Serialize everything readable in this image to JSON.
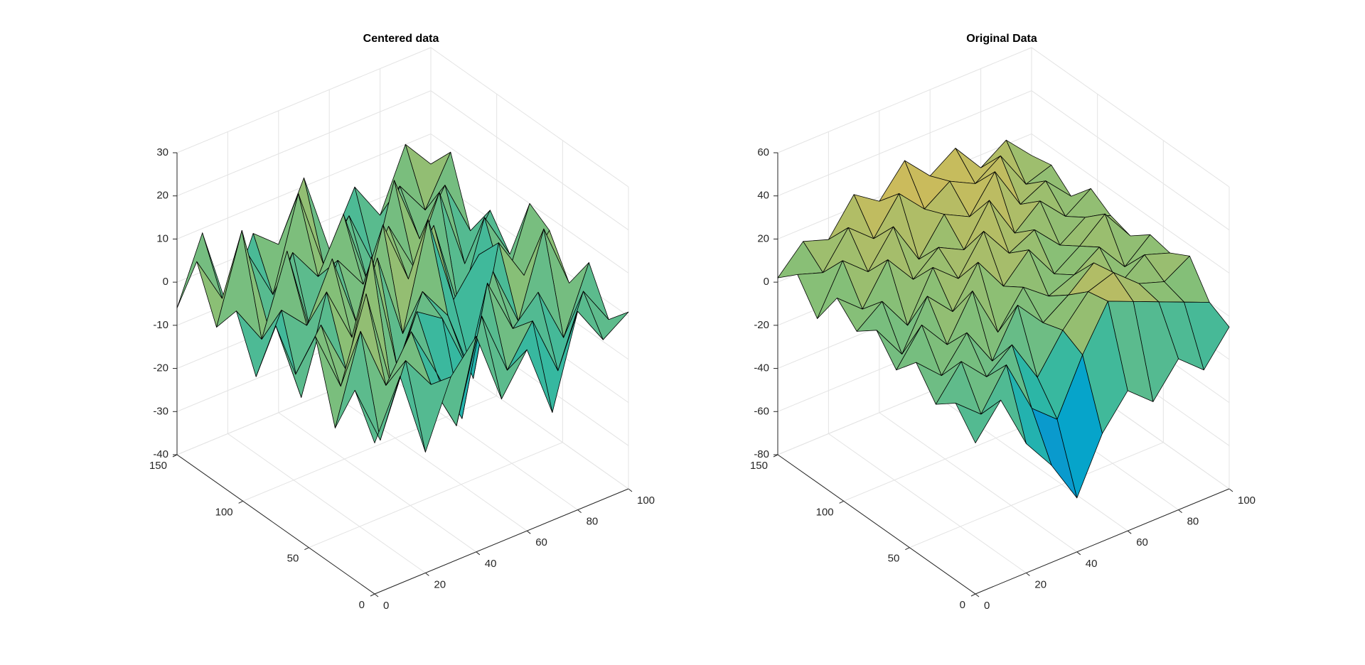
{
  "chart_data": [
    {
      "type": "surface",
      "title": "Centered data",
      "x": [
        0,
        10,
        20,
        30,
        40,
        50,
        60,
        70,
        80,
        90,
        100
      ],
      "y": [
        0,
        15,
        30,
        45,
        60,
        75,
        90,
        105,
        120,
        135,
        150
      ],
      "z": [
        [
          -5,
          8,
          -12,
          3,
          10,
          -7,
          2,
          -15,
          6,
          -3,
          1
        ],
        [
          4,
          -10,
          6,
          -2,
          -14,
          9,
          -6,
          3,
          -11,
          5,
          -4
        ],
        [
          -8,
          12,
          -3,
          7,
          -5,
          -18,
          11,
          -2,
          4,
          -9,
          6
        ],
        [
          10,
          -4,
          15,
          -9,
          6,
          2,
          -12,
          8,
          -6,
          13,
          -2
        ],
        [
          -2,
          7,
          -6,
          18,
          -10,
          5,
          -3,
          -20,
          9,
          -1,
          7
        ],
        [
          6,
          -13,
          9,
          -4,
          12,
          -8,
          16,
          -5,
          3,
          -7,
          10
        ],
        [
          -9,
          4,
          -2,
          11,
          -7,
          14,
          -1,
          9,
          -13,
          6,
          -5
        ],
        [
          3,
          -6,
          12,
          -11,
          5,
          -3,
          8,
          -4,
          11,
          -8,
          2
        ],
        [
          -4,
          16,
          -8,
          6,
          -2,
          10,
          -9,
          13,
          -3,
          7,
          -6
        ],
        [
          8,
          -3,
          5,
          -7,
          14,
          -5,
          4,
          -10,
          6,
          -2,
          9
        ],
        [
          -6,
          9,
          -11,
          4,
          -1,
          12,
          -7,
          5,
          -4,
          10,
          3
        ]
      ],
      "xlim": [
        0,
        100
      ],
      "ylim": [
        0,
        150
      ],
      "zlim": [
        -40,
        30
      ],
      "xticks": [
        0,
        20,
        40,
        60,
        80,
        100
      ],
      "yticks": [
        0,
        50,
        100,
        150
      ],
      "zticks": [
        -40,
        -30,
        -20,
        -10,
        0,
        10,
        20,
        30
      ],
      "grid": true,
      "colormap": [
        "#352a87",
        "#0f5cdd",
        "#1481d6",
        "#06a4ca",
        "#2eb7a4",
        "#87bf77",
        "#d1bb59",
        "#fec832",
        "#f9fb0e"
      ]
    },
    {
      "type": "surface",
      "title": "Original Data",
      "x": [
        0,
        10,
        20,
        30,
        40,
        50,
        60,
        70,
        80,
        90,
        100
      ],
      "y": [
        0,
        15,
        30,
        45,
        60,
        75,
        90,
        105,
        120,
        135,
        150
      ],
      "z": [
        [
          -10,
          5,
          -20,
          -35,
          -55,
          -30,
          -15,
          -25,
          -10,
          -20,
          -5
        ],
        [
          2,
          -8,
          10,
          -15,
          -25,
          0,
          20,
          15,
          10,
          5,
          0
        ],
        [
          -5,
          10,
          -2,
          8,
          -12,
          5,
          18,
          22,
          12,
          8,
          15
        ],
        [
          8,
          -3,
          12,
          -6,
          15,
          2,
          10,
          20,
          5,
          14,
          10
        ],
        [
          -2,
          14,
          0,
          20,
          -4,
          12,
          3,
          8,
          16,
          2,
          12
        ],
        [
          10,
          -6,
          16,
          4,
          22,
          6,
          18,
          2,
          10,
          20,
          5
        ],
        [
          3,
          12,
          -4,
          18,
          8,
          25,
          10,
          16,
          4,
          12,
          8
        ],
        [
          12,
          2,
          20,
          6,
          16,
          10,
          28,
          8,
          18,
          6,
          14
        ],
        [
          -4,
          18,
          8,
          24,
          4,
          20,
          14,
          30,
          10,
          16,
          4
        ],
        [
          10,
          6,
          22,
          12,
          28,
          16,
          24,
          18,
          26,
          8,
          12
        ],
        [
          2,
          14,
          10,
          26,
          18,
          32,
          20,
          28,
          14,
          22,
          10
        ]
      ],
      "xlim": [
        0,
        100
      ],
      "ylim": [
        0,
        150
      ],
      "zlim": [
        -80,
        60
      ],
      "xticks": [
        0,
        20,
        40,
        60,
        80,
        100
      ],
      "yticks": [
        0,
        50,
        100,
        150
      ],
      "zticks": [
        -80,
        -60,
        -40,
        -20,
        0,
        20,
        40,
        60
      ],
      "grid": true,
      "colormap": [
        "#352a87",
        "#0f5cdd",
        "#1481d6",
        "#06a4ca",
        "#2eb7a4",
        "#87bf77",
        "#d1bb59",
        "#fec832",
        "#f9fb0e"
      ]
    }
  ]
}
